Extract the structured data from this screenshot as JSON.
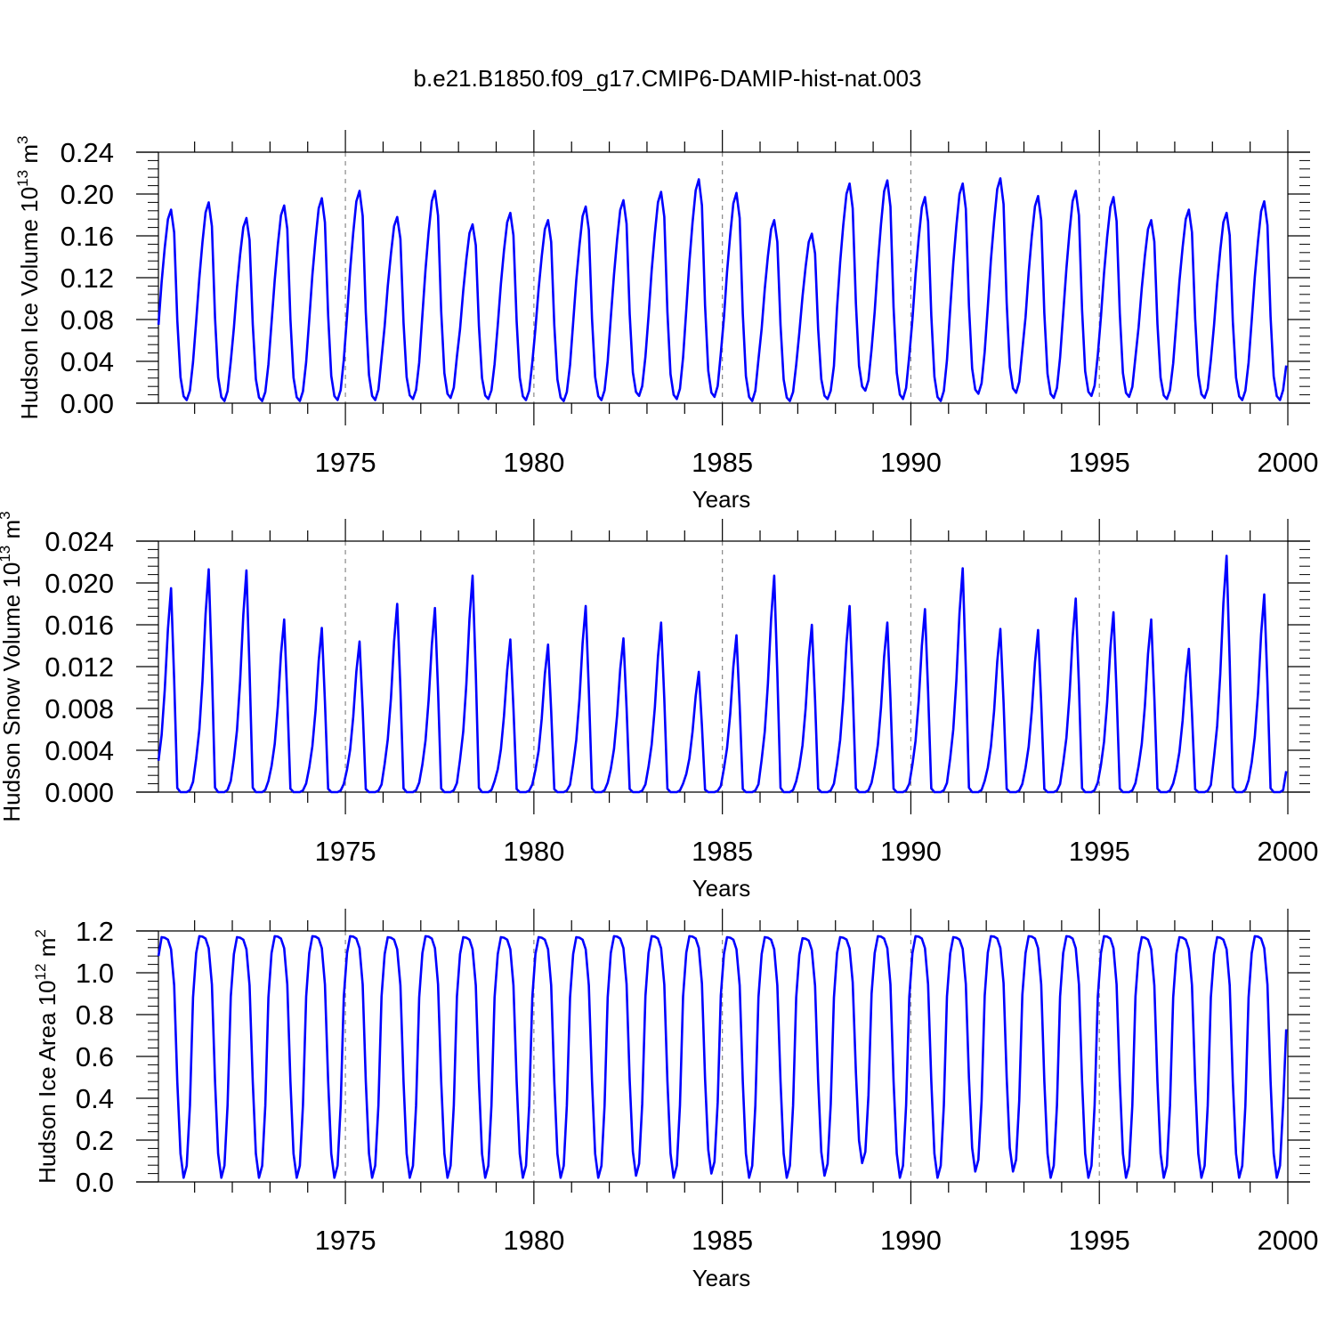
{
  "figure_title": "b.e21.B1850.f09_g17.CMIP6-DAMIP-hist-nat.003",
  "line_color": "#0000ff",
  "chart_data": [
    {
      "type": "line",
      "ylabel": {
        "main": "Hudson Ice Volume 10",
        "exp": "13",
        "unit": " m",
        "unit_exp": "3"
      },
      "xlabel": "Years",
      "xlim": [
        1970.04,
        2000.0
      ],
      "ylim": [
        0.0,
        0.24
      ],
      "yticks": [
        0.0,
        0.04,
        0.08,
        0.12,
        0.16,
        0.2,
        0.24
      ],
      "ytick_labels": [
        "0.00",
        "0.04",
        "0.08",
        "0.12",
        "0.16",
        "0.20",
        "0.24"
      ],
      "xticks": [
        1975,
        1980,
        1985,
        1990,
        1995,
        2000
      ],
      "xtick_labels": [
        "1975",
        "1980",
        "1985",
        "1990",
        "1995",
        "2000"
      ],
      "gridlines_x": [
        1975,
        1980,
        1985,
        1990,
        1995
      ],
      "start_value": 0.075,
      "end_value": 0.036,
      "annual_peak": [
        0.185,
        0.192,
        0.177,
        0.189,
        0.196,
        0.203,
        0.178,
        0.203,
        0.171,
        0.182,
        0.175,
        0.188,
        0.194,
        0.202,
        0.214,
        0.201,
        0.175,
        0.162,
        0.21,
        0.213,
        0.197,
        0.21,
        0.215,
        0.198,
        0.203,
        0.197,
        0.175,
        0.185,
        0.182,
        0.193
      ],
      "annual_min": [
        0.003,
        0.002,
        0.002,
        0.002,
        0.003,
        0.003,
        0.004,
        0.005,
        0.004,
        0.003,
        0.002,
        0.003,
        0.007,
        0.004,
        0.006,
        0.002,
        0.002,
        0.004,
        0.012,
        0.004,
        0.002,
        0.009,
        0.01,
        0.005,
        0.007,
        0.006,
        0.004,
        0.005,
        0.003,
        0.003
      ],
      "series": [
        {
          "name": "",
          "color": "#0000ff"
        }
      ]
    },
    {
      "type": "line",
      "ylabel": {
        "main": "Hudson Snow Volume 10",
        "exp": "13",
        "unit": " m",
        "unit_exp": "3"
      },
      "xlabel": "Years",
      "xlim": [
        1970.04,
        2000.0
      ],
      "ylim": [
        0.0,
        0.024
      ],
      "yticks": [
        0.0,
        0.004,
        0.008,
        0.012,
        0.016,
        0.02,
        0.024
      ],
      "ytick_labels": [
        "0.000",
        "0.004",
        "0.008",
        "0.012",
        "0.016",
        "0.020",
        "0.024"
      ],
      "xticks": [
        1975,
        1980,
        1985,
        1990,
        1995,
        2000
      ],
      "xtick_labels": [
        "1975",
        "1980",
        "1985",
        "1990",
        "1995",
        "2000"
      ],
      "gridlines_x": [
        1975,
        1980,
        1985,
        1990,
        1995
      ],
      "start_value": 0.003,
      "end_value": 0.002,
      "annual_peak": [
        0.0195,
        0.0213,
        0.0212,
        0.0165,
        0.0157,
        0.0144,
        0.018,
        0.0176,
        0.0207,
        0.0146,
        0.0141,
        0.0178,
        0.0147,
        0.0162,
        0.0115,
        0.015,
        0.0207,
        0.016,
        0.0178,
        0.0162,
        0.0175,
        0.0214,
        0.0156,
        0.0155,
        0.0185,
        0.0172,
        0.0165,
        0.0137,
        0.0226,
        0.0189
      ],
      "annual_min": [
        0.0,
        0.0,
        0.0,
        0.0,
        0.0,
        0.0,
        0.0,
        0.0,
        0.0,
        0.0,
        0.0,
        0.0,
        0.0,
        0.0,
        0.0,
        0.0,
        0.0,
        0.0,
        0.0,
        0.0,
        0.0,
        0.0,
        0.0,
        0.0,
        0.0,
        0.0,
        0.0,
        0.0,
        0.0,
        0.0
      ],
      "series": [
        {
          "name": "",
          "color": "#0000ff"
        }
      ]
    },
    {
      "type": "line",
      "ylabel": {
        "main": "Hudson Ice Area 10",
        "exp": "12",
        "unit": " m",
        "unit_exp": "2"
      },
      "xlabel": "Years",
      "xlim": [
        1970.04,
        2000.0
      ],
      "ylim": [
        0.0,
        1.2
      ],
      "yticks": [
        0.0,
        0.2,
        0.4,
        0.6,
        0.8,
        1.0,
        1.2
      ],
      "ytick_labels": [
        "0.0",
        "0.2",
        "0.4",
        "0.6",
        "0.8",
        "1.0",
        "1.2"
      ],
      "xticks": [
        1975,
        1980,
        1985,
        1990,
        1995,
        2000
      ],
      "xtick_labels": [
        "1975",
        "1980",
        "1985",
        "1990",
        "1995",
        "2000"
      ],
      "gridlines_x": [
        1975,
        1980,
        1985,
        1990,
        1995
      ],
      "start_value": 1.08,
      "end_value": 0.73,
      "annual_peak": [
        1.17,
        1.175,
        1.17,
        1.175,
        1.175,
        1.175,
        1.17,
        1.175,
        1.17,
        1.17,
        1.17,
        1.17,
        1.175,
        1.175,
        1.175,
        1.17,
        1.17,
        1.165,
        1.17,
        1.175,
        1.175,
        1.17,
        1.175,
        1.175,
        1.175,
        1.175,
        1.17,
        1.17,
        1.17,
        1.175
      ],
      "annual_min": [
        0.02,
        0.02,
        0.02,
        0.02,
        0.02,
        0.02,
        0.02,
        0.02,
        0.02,
        0.02,
        0.02,
        0.02,
        0.03,
        0.02,
        0.04,
        0.02,
        0.02,
        0.03,
        0.09,
        0.02,
        0.02,
        0.05,
        0.05,
        0.02,
        0.02,
        0.02,
        0.02,
        0.02,
        0.02,
        0.02
      ],
      "series": [
        {
          "name": "",
          "color": "#0000ff"
        }
      ]
    }
  ]
}
